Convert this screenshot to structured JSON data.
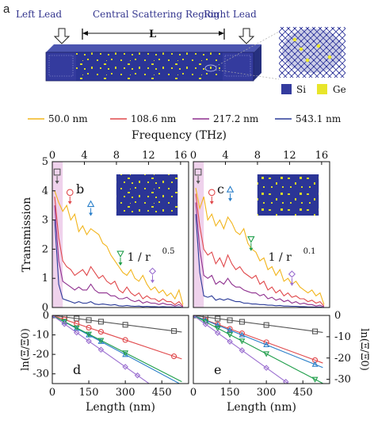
{
  "panel_a": {
    "label": "a",
    "left_lead": "Left Lead",
    "central_region": "Central Scattering Region",
    "right_lead": "Right Lead",
    "length_symbol": "L",
    "legend_si": "Si",
    "legend_ge": "Ge"
  },
  "colors": {
    "s50": "#f2b51c",
    "s108": "#e0484b",
    "s217": "#8e2f8e",
    "s543": "#2a3a98",
    "blue_line": "#2a7fc9",
    "green_line": "#1f9e4a",
    "violet_line": "#9b6fd0",
    "gray_line": "#555555",
    "si_blue": "#343b9e",
    "ge_yellow": "#e8e52a",
    "highlight": "#efd2ec"
  },
  "legend": [
    "50.0 nm",
    "108.6 nm",
    "217.2 nm",
    "543.1 nm"
  ],
  "chart_data": [
    {
      "type": "line",
      "panel": "b",
      "xlabel": "Frequency (THz)",
      "ylabel": "Transmission",
      "xlim": [
        0,
        17
      ],
      "ylim": [
        0,
        5
      ],
      "xticks": [
        0,
        4,
        8,
        12,
        16
      ],
      "yticks": [
        0,
        1,
        2,
        3,
        4,
        5
      ],
      "annotation": "1 / r",
      "exponent": "0.5",
      "x": [
        0.3,
        0.8,
        1.3,
        1.8,
        2.3,
        2.8,
        3.3,
        3.8,
        4.3,
        4.8,
        5.3,
        5.8,
        6.3,
        6.8,
        7.3,
        7.8,
        8.3,
        8.8,
        9.3,
        9.8,
        10.3,
        10.8,
        11.3,
        11.8,
        12.3,
        12.8,
        13.3,
        13.8,
        14.3,
        14.8,
        15.3,
        15.8,
        16.3
      ],
      "series": [
        {
          "name": "50.0 nm",
          "values": [
            4.0,
            3.6,
            3.3,
            3.5,
            3.0,
            3.2,
            2.6,
            2.8,
            2.5,
            2.7,
            2.6,
            2.5,
            2.2,
            2.1,
            1.8,
            1.6,
            1.4,
            1.2,
            1.1,
            1.3,
            1.0,
            0.9,
            1.1,
            0.8,
            0.6,
            0.7,
            0.5,
            0.6,
            0.4,
            0.5,
            0.3,
            0.6,
            0.1
          ]
        },
        {
          "name": "108.6 nm",
          "values": [
            3.8,
            2.4,
            1.6,
            1.4,
            1.3,
            1.1,
            1.2,
            1.3,
            1.1,
            1.4,
            1.2,
            1.0,
            1.1,
            0.9,
            0.8,
            0.9,
            0.6,
            0.5,
            0.7,
            0.5,
            0.4,
            0.5,
            0.3,
            0.4,
            0.3,
            0.3,
            0.2,
            0.3,
            0.2,
            0.2,
            0.1,
            0.2,
            0.05
          ]
        },
        {
          "name": "217.2 nm",
          "values": [
            3.5,
            1.6,
            0.9,
            0.8,
            0.7,
            0.6,
            0.7,
            0.6,
            0.6,
            0.8,
            0.6,
            0.5,
            0.5,
            0.5,
            0.4,
            0.4,
            0.3,
            0.3,
            0.35,
            0.25,
            0.2,
            0.25,
            0.15,
            0.2,
            0.15,
            0.15,
            0.1,
            0.15,
            0.1,
            0.1,
            0.05,
            0.1,
            0.02
          ]
        },
        {
          "name": "543.1 nm",
          "values": [
            3.0,
            0.8,
            0.3,
            0.25,
            0.2,
            0.15,
            0.2,
            0.15,
            0.15,
            0.2,
            0.12,
            0.1,
            0.12,
            0.1,
            0.08,
            0.1,
            0.06,
            0.05,
            0.07,
            0.05,
            0.04,
            0.05,
            0.03,
            0.04,
            0.03,
            0.03,
            0.02,
            0.03,
            0.02,
            0.02,
            0.01,
            0.02,
            0.0
          ]
        }
      ],
      "markers": [
        {
          "shape": "square",
          "x": 0.6,
          "y": 4.4
        },
        {
          "shape": "circle",
          "x": 2.2,
          "y": 3.7
        },
        {
          "shape": "triangle-up",
          "x": 4.8,
          "y": 3.3
        },
        {
          "shape": "triangle-down",
          "x": 8.5,
          "y": 1.6
        },
        {
          "shape": "diamond",
          "x": 12.5,
          "y": 1.0
        }
      ]
    },
    {
      "type": "line",
      "panel": "c",
      "xlabel": "Frequency (THz)",
      "xlim": [
        0,
        17
      ],
      "ylim": [
        0,
        5
      ],
      "xticks": [
        0,
        4,
        8,
        12,
        16
      ],
      "annotation": "1 / r",
      "exponent": "0.1",
      "x": [
        0.3,
        0.8,
        1.3,
        1.8,
        2.3,
        2.8,
        3.3,
        3.8,
        4.3,
        4.8,
        5.3,
        5.8,
        6.3,
        6.8,
        7.3,
        7.8,
        8.3,
        8.8,
        9.3,
        9.8,
        10.3,
        10.8,
        11.3,
        11.8,
        12.3,
        12.8,
        13.3,
        13.8,
        14.3,
        14.8,
        15.3,
        15.8,
        16.3
      ],
      "series": [
        {
          "name": "50.0 nm",
          "values": [
            4.1,
            3.4,
            3.8,
            3.0,
            3.2,
            2.8,
            3.0,
            2.7,
            3.1,
            2.9,
            2.6,
            2.5,
            2.7,
            2.2,
            2.0,
            1.9,
            1.6,
            1.7,
            1.3,
            1.4,
            1.1,
            1.3,
            0.9,
            1.0,
            0.8,
            0.9,
            0.7,
            0.6,
            0.5,
            0.6,
            0.4,
            0.5,
            0.1
          ]
        },
        {
          "name": "108.6 nm",
          "values": [
            3.9,
            2.8,
            2.0,
            1.8,
            1.9,
            1.5,
            1.7,
            1.4,
            1.8,
            1.5,
            1.3,
            1.4,
            1.2,
            1.1,
            1.0,
            1.1,
            0.8,
            0.9,
            0.6,
            0.7,
            0.5,
            0.6,
            0.4,
            0.5,
            0.35,
            0.4,
            0.3,
            0.3,
            0.2,
            0.25,
            0.15,
            0.2,
            0.05
          ]
        },
        {
          "name": "217.2 nm",
          "values": [
            3.6,
            2.0,
            1.1,
            1.0,
            1.1,
            0.8,
            0.9,
            0.8,
            1.0,
            0.8,
            0.7,
            0.7,
            0.6,
            0.55,
            0.5,
            0.5,
            0.4,
            0.45,
            0.3,
            0.35,
            0.25,
            0.3,
            0.2,
            0.25,
            0.15,
            0.2,
            0.12,
            0.15,
            0.1,
            0.1,
            0.05,
            0.08,
            0.02
          ]
        },
        {
          "name": "543.1 nm",
          "values": [
            3.2,
            1.2,
            0.4,
            0.35,
            0.4,
            0.25,
            0.3,
            0.25,
            0.3,
            0.25,
            0.2,
            0.2,
            0.15,
            0.15,
            0.12,
            0.12,
            0.1,
            0.1,
            0.08,
            0.08,
            0.06,
            0.07,
            0.05,
            0.05,
            0.04,
            0.04,
            0.03,
            0.03,
            0.02,
            0.02,
            0.01,
            0.02,
            0.0
          ]
        }
      ],
      "markers": [
        {
          "shape": "square",
          "x": 0.6,
          "y": 4.4
        },
        {
          "shape": "circle",
          "x": 2.3,
          "y": 3.7
        },
        {
          "shape": "triangle-up",
          "x": 4.6,
          "y": 3.8
        },
        {
          "shape": "triangle-down",
          "x": 7.2,
          "y": 2.1
        },
        {
          "shape": "diamond",
          "x": 12.3,
          "y": 0.9
        }
      ]
    },
    {
      "type": "line",
      "panel": "d",
      "xlabel": "Length (nm)",
      "ylabel": "ln(Ξ/Ξ0)",
      "xlim": [
        0,
        560
      ],
      "ylim": [
        -35,
        0
      ],
      "xticks": [
        0,
        150,
        300,
        450
      ],
      "yticks": [
        0,
        -10,
        -20,
        -30
      ],
      "series": [
        {
          "name": "square",
          "slope": -0.016,
          "x": [
            0,
            50,
            100,
            150,
            200,
            300,
            500
          ]
        },
        {
          "name": "circle",
          "slope": -0.042,
          "x": [
            0,
            50,
            100,
            150,
            200,
            300,
            500
          ]
        },
        {
          "name": "triangle-up",
          "slope": -0.067,
          "x": [
            0,
            50,
            100,
            150,
            200,
            300
          ]
        },
        {
          "name": "triangle-down",
          "slope": -0.064,
          "x": [
            0,
            50,
            100,
            150,
            200,
            300
          ]
        },
        {
          "name": "diamond",
          "slope": -0.088,
          "x": [
            0,
            50,
            100,
            150,
            200,
            300,
            350
          ]
        }
      ]
    },
    {
      "type": "line",
      "panel": "e",
      "xlabel": "Length (nm)",
      "ylabel": "ln(Ξ/Ξ0)",
      "xlim": [
        0,
        560
      ],
      "ylim": [
        -32,
        0
      ],
      "xticks": [
        0,
        150,
        300,
        450
      ],
      "yticks": [
        0,
        -10,
        -20,
        -30
      ],
      "series": [
        {
          "name": "square",
          "slope": -0.015,
          "x": [
            0,
            50,
            100,
            150,
            200,
            300,
            500
          ]
        },
        {
          "name": "circle",
          "slope": -0.042,
          "x": [
            0,
            50,
            100,
            150,
            200,
            300,
            500
          ]
        },
        {
          "name": "triangle-up",
          "slope": -0.046,
          "x": [
            0,
            50,
            100,
            150,
            200,
            300,
            500
          ]
        },
        {
          "name": "triangle-down",
          "slope": -0.06,
          "x": [
            0,
            50,
            100,
            150,
            200,
            300,
            500
          ]
        },
        {
          "name": "diamond",
          "slope": -0.082,
          "x": [
            0,
            50,
            100,
            150,
            200,
            300,
            380
          ]
        }
      ]
    }
  ]
}
